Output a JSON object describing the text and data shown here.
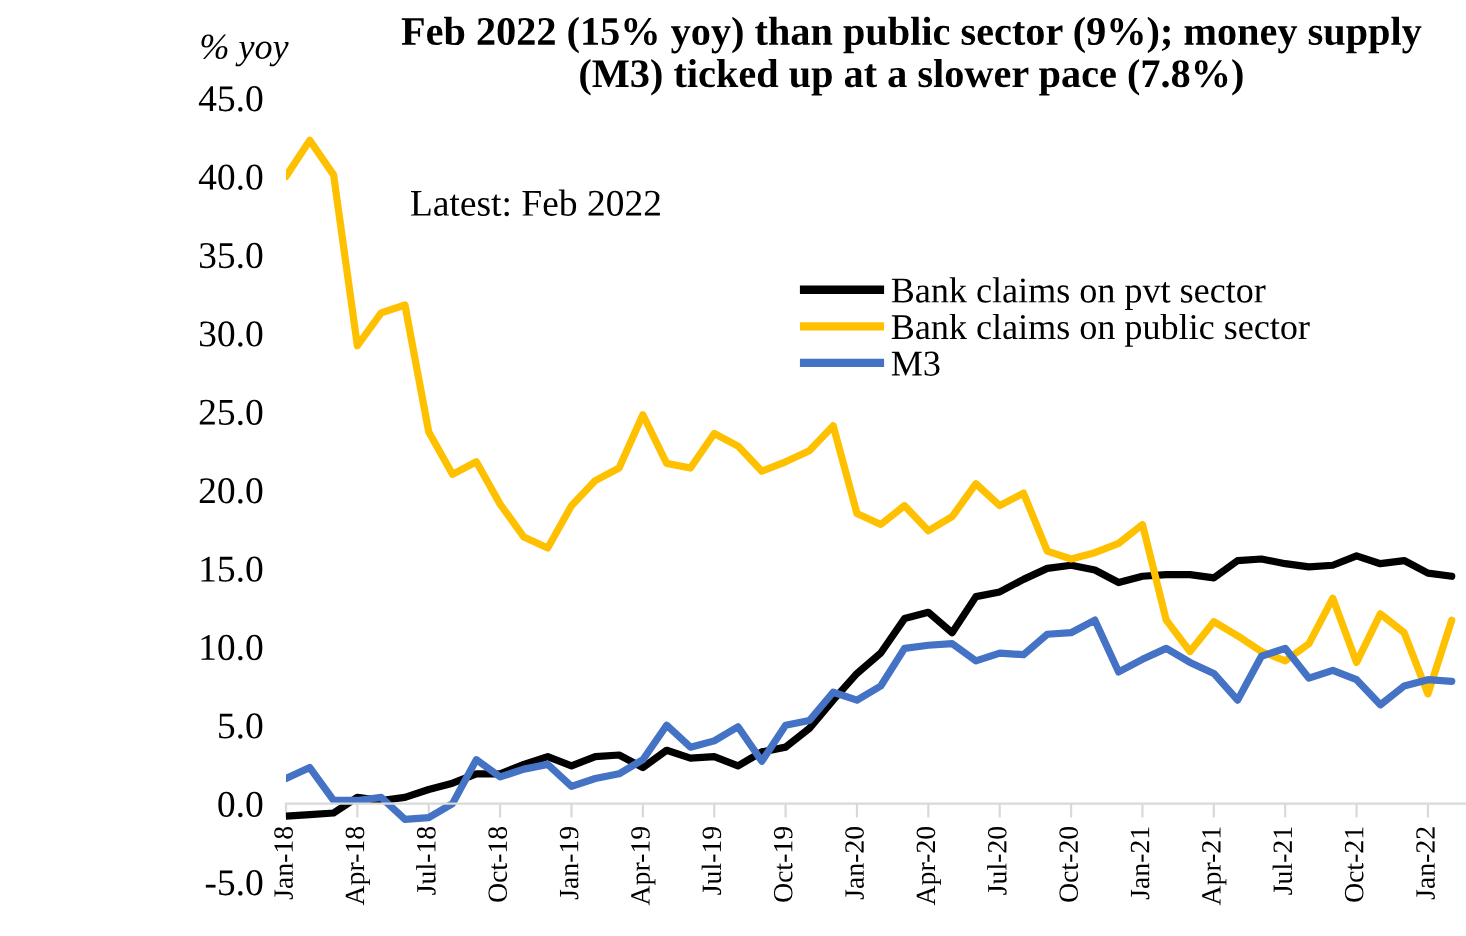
{
  "chart_data": {
    "type": "line",
    "title": "Feb 2022 (15% yoy) than public sector (9%); money supply (M3) ticked up at a slower pace (7.8%)",
    "ylabel": "% yoy",
    "annotations": [
      "Latest: Feb 2022"
    ],
    "legend": "top right",
    "categories": [
      "Jan-18",
      null,
      null,
      "Apr-18",
      null,
      null,
      "Jul-18",
      null,
      null,
      "Oct-18",
      null,
      null,
      "Jan-19",
      null,
      null,
      "Apr-19",
      null,
      null,
      "Jul-19",
      null,
      null,
      "Oct-19",
      null,
      null,
      "Jan-20",
      null,
      null,
      "Apr-20",
      null,
      null,
      "Jul-20",
      null,
      null,
      "Oct-20",
      null,
      null,
      "Jan-21",
      null,
      null,
      "Apr-21",
      null,
      null,
      "Jul-21",
      null,
      null,
      "Oct-21",
      null,
      null,
      "Jan-22",
      null
    ],
    "ylim": [
      -5,
      45
    ],
    "yticks": [
      {
        "value": -5,
        "label": "-5.0"
      },
      {
        "value": 0,
        "label": "0.0"
      },
      {
        "value": 5,
        "label": "5.0"
      },
      {
        "value": 10,
        "label": "10.0"
      },
      {
        "value": 15,
        "label": "15.0"
      },
      {
        "value": 20,
        "label": "20.0"
      },
      {
        "value": 25,
        "label": "25.0"
      },
      {
        "value": 30,
        "label": "30.0"
      },
      {
        "value": 35,
        "label": "35.0"
      },
      {
        "value": 40,
        "label": "40.0"
      },
      {
        "value": 45,
        "label": "45.0"
      }
    ],
    "series": [
      {
        "name": "Bank claims on pvt sector",
        "color": "#000000",
        "values": [
          -0.8,
          -0.7,
          -0.6,
          0.4,
          0.2,
          0.4,
          0.9,
          1.3,
          1.9,
          1.9,
          2.5,
          3.0,
          2.4,
          3.0,
          3.1,
          2.3,
          3.4,
          2.9,
          3.0,
          2.4,
          3.3,
          3.6,
          4.8,
          6.6,
          8.3,
          9.6,
          11.8,
          12.2,
          10.9,
          13.2,
          13.5,
          14.3,
          15.0,
          15.2,
          14.9,
          14.1,
          14.5,
          14.6,
          14.6,
          14.4,
          15.5,
          15.6,
          15.3,
          15.1,
          15.2,
          15.8,
          15.3,
          15.5,
          14.7,
          14.5
        ]
      },
      {
        "name": "Bank claims on public sector",
        "color": "#ffc000",
        "values": [
          40.0,
          42.3,
          40.1,
          29.2,
          31.3,
          31.8,
          23.7,
          21.0,
          21.8,
          19.1,
          17.0,
          16.3,
          19.0,
          20.6,
          21.4,
          24.8,
          21.7,
          21.4,
          23.6,
          22.8,
          21.2,
          21.8,
          22.5,
          24.1,
          18.5,
          17.8,
          19.0,
          17.4,
          18.3,
          20.4,
          19.0,
          19.8,
          16.1,
          15.6,
          16.0,
          16.6,
          17.8,
          11.7,
          9.7,
          11.6,
          10.7,
          9.7,
          9.1,
          10.2,
          13.1,
          9.0,
          12.1,
          10.9,
          7.0,
          11.7
        ]
      },
      {
        "name": "M3",
        "color": "#4472c4",
        "values": [
          1.6,
          2.3,
          0.2,
          0.2,
          0.4,
          -1.0,
          -0.9,
          0.0,
          2.8,
          1.7,
          2.2,
          2.5,
          1.1,
          1.6,
          1.9,
          2.8,
          5.0,
          3.6,
          4.0,
          4.9,
          2.7,
          5.0,
          5.3,
          7.1,
          6.6,
          7.5,
          9.9,
          10.1,
          10.2,
          9.1,
          9.6,
          9.5,
          10.8,
          10.9,
          11.7,
          8.4,
          9.2,
          9.9,
          9.0,
          8.3,
          6.6,
          9.4,
          9.9,
          8.0,
          8.5,
          7.9,
          6.3,
          7.5,
          7.9,
          7.8
        ]
      }
    ]
  }
}
